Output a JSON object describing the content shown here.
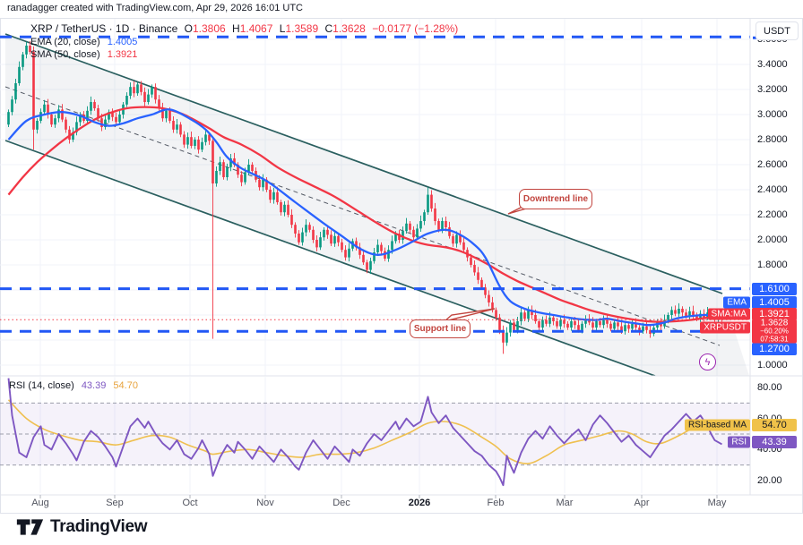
{
  "page": {
    "attribution": "ranadagger created with TradingView.com, Apr 29, 2026 16:01 UTC"
  },
  "header": {
    "symbol_title": "XRP / TetherUS · 1D · Binance",
    "o_label": "O",
    "o_value": "1.3806",
    "h_label": "H",
    "h_value": "1.4067",
    "l_label": "L",
    "l_value": "1.3589",
    "c_label": "C",
    "c_value": "1.3628",
    "change": "−0.0177 (−1.28%)",
    "ema_label": "EMA (20, close)",
    "ema_value": "1.4005",
    "sma_label": "SMA (50, close)",
    "sma_value": "1.3921"
  },
  "rsi_legend": {
    "label": "RSI (14, close)",
    "rsi_value": "43.39",
    "ma_value": "54.70"
  },
  "axis": {
    "currency_button": "USDT",
    "price_ticks": [
      [
        "3.6000",
        44
      ],
      [
        "3.4000",
        72
      ],
      [
        "3.2000",
        100
      ],
      [
        "3.0000",
        128
      ],
      [
        "2.8000",
        156
      ],
      [
        "2.6000",
        184
      ],
      [
        "2.4000",
        212
      ],
      [
        "2.2000",
        240
      ],
      [
        "2.0000",
        268
      ],
      [
        "1.8000",
        296
      ],
      [
        "1.0000",
        408
      ]
    ],
    "rsi_ticks": [
      [
        "80.00",
        433
      ],
      [
        "60.00",
        468
      ],
      [
        "40.00",
        502
      ],
      [
        "20.00",
        537
      ]
    ],
    "badges": {
      "resistance": "1.6100",
      "ema_chip": "EMA",
      "ema_value": "1.4005",
      "sma_chip": "SMA:MA",
      "sma_value": "1.3921",
      "last_chip": "XRPUSDT",
      "last_price": "1.3628",
      "last_change_pct": "−60.20%",
      "last_countdown": "07:58:31",
      "support": "1.2700",
      "rsi_ma_chip": "RSI-based MA",
      "rsi_ma_value": "54.70",
      "rsi_chip": "RSI",
      "rsi_value": "43.39"
    }
  },
  "time_axis": {
    "labels": [
      [
        "Aug",
        45
      ],
      [
        "Sep",
        128
      ],
      [
        "Oct",
        212
      ],
      [
        "Nov",
        296
      ],
      [
        "Dec",
        381
      ],
      [
        "2026",
        468
      ],
      [
        "Feb",
        553
      ],
      [
        "Mar",
        630
      ],
      [
        "Apr",
        716
      ],
      [
        "May",
        800
      ]
    ]
  },
  "annotations": {
    "downtrend": "Downtrend line",
    "support": "Support line",
    "lightning_icon": "ϟ"
  },
  "footer": {
    "logo_text": "TradingView"
  },
  "colors": {
    "up": "#089981",
    "down": "#f23645",
    "ema": "#2962ff",
    "sma": "#f23645",
    "channel": "#2a5f5f",
    "channel_fill": "rgba(131,136,153,0.10)",
    "mid_dash": "#555b66",
    "level_blue": "#2157f5",
    "price_line": "#f23645",
    "rsi": "#7e57c2",
    "rsi_ma": "#efc050",
    "rsi_band_fill": "rgba(126,87,194,0.08)",
    "rsi_band_border": "#9a9daa",
    "grid": "#f0f3fa",
    "frame": "#e0e3eb"
  },
  "chart_data": {
    "type": "candlestick",
    "title": "XRP / TetherUS · 1D · Binance",
    "x_axis_months": [
      "Aug",
      "Sep",
      "Oct",
      "Nov",
      "Dec",
      "2026",
      "Feb",
      "Mar",
      "Apr",
      "May"
    ],
    "price_axis_range": [
      1.0,
      3.7
    ],
    "rsi_axis_range": [
      15,
      85
    ],
    "legend": [
      "EMA (20, close)",
      "SMA (50, close)",
      "RSI (14, close)"
    ],
    "last": {
      "open": 1.3806,
      "high": 1.4067,
      "low": 1.3589,
      "close": 1.3628,
      "change": -0.0177,
      "change_pct": -1.28
    },
    "levels": {
      "upper_resistance": 3.62,
      "resistance": 1.61,
      "support": 1.27,
      "current_price": 1.3628
    },
    "first_open": 2.92,
    "closes": [
      3.02,
      3.12,
      3.25,
      3.38,
      3.48,
      3.55,
      3.5,
      2.88,
      2.95,
      3.02,
      3.08,
      3.0,
      2.92,
      2.97,
      3.04,
      2.96,
      2.88,
      2.8,
      2.86,
      2.94,
      3.0,
      2.95,
      3.03,
      3.1,
      3.05,
      2.97,
      2.9,
      2.96,
      3.02,
      2.98,
      2.94,
      3.0,
      3.08,
      3.15,
      3.22,
      3.17,
      3.24,
      3.18,
      3.1,
      3.16,
      3.22,
      3.12,
      3.05,
      2.97,
      3.03,
      2.95,
      2.88,
      2.92,
      2.84,
      2.76,
      2.82,
      2.75,
      2.8,
      2.72,
      2.78,
      2.84,
      2.79,
      2.45,
      2.55,
      2.62,
      2.5,
      2.58,
      2.65,
      2.6,
      2.52,
      2.46,
      2.54,
      2.6,
      2.55,
      2.48,
      2.42,
      2.48,
      2.4,
      2.32,
      2.38,
      2.3,
      2.22,
      2.28,
      2.2,
      2.12,
      2.05,
      1.98,
      2.06,
      2.12,
      2.08,
      2.0,
      1.94,
      2.02,
      2.08,
      2.04,
      1.97,
      2.03,
      1.98,
      1.92,
      1.86,
      1.93,
      1.99,
      1.94,
      1.88,
      1.82,
      1.76,
      1.83,
      1.9,
      1.96,
      1.91,
      1.85,
      1.92,
      1.99,
      2.05,
      2.0,
      2.07,
      2.13,
      2.08,
      2.02,
      2.09,
      2.15,
      2.22,
      2.36,
      2.25,
      2.15,
      2.08,
      2.15,
      2.1,
      2.03,
      1.97,
      2.04,
      1.98,
      1.92,
      1.86,
      1.8,
      1.74,
      1.68,
      1.62,
      1.56,
      1.5,
      1.44,
      1.38,
      1.28,
      1.18,
      1.26,
      1.34,
      1.28,
      1.35,
      1.42,
      1.37,
      1.44,
      1.4,
      1.35,
      1.3,
      1.36,
      1.33,
      1.38,
      1.35,
      1.31,
      1.36,
      1.33,
      1.3,
      1.35,
      1.32,
      1.28,
      1.33,
      1.37,
      1.34,
      1.3,
      1.35,
      1.32,
      1.36,
      1.33,
      1.29,
      1.34,
      1.31,
      1.27,
      1.32,
      1.29,
      1.33,
      1.3,
      1.27,
      1.31,
      1.28,
      1.25,
      1.3,
      1.34,
      1.31,
      1.36,
      1.4,
      1.44,
      1.41,
      1.45,
      1.42,
      1.39,
      1.43,
      1.4,
      1.37,
      1.41,
      1.38,
      1.42,
      1.39,
      1.36,
      1.4,
      1.3628
    ],
    "wick_overrides": {
      "5": {
        "h": 3.58
      },
      "7": {
        "l": 2.72
      },
      "57": {
        "l": 1.21
      },
      "117": {
        "h": 2.42
      },
      "138": {
        "l": 1.09
      }
    },
    "ema20": [
      [
        0,
        2.8
      ],
      [
        5,
        2.95
      ],
      [
        10,
        3.0
      ],
      [
        15,
        3.02
      ],
      [
        20,
        2.99
      ],
      [
        24,
        2.94
      ],
      [
        28,
        2.91
      ],
      [
        32,
        2.93
      ],
      [
        36,
        2.97
      ],
      [
        40,
        3.0
      ],
      [
        45,
        3.04
      ],
      [
        51,
        2.96
      ],
      [
        55,
        2.88
      ],
      [
        58,
        2.78
      ],
      [
        61,
        2.66
      ],
      [
        65,
        2.57
      ],
      [
        72,
        2.47
      ],
      [
        80,
        2.3
      ],
      [
        88,
        2.13
      ],
      [
        93,
        2.03
      ],
      [
        98,
        1.93
      ],
      [
        103,
        1.88
      ],
      [
        108,
        1.92
      ],
      [
        113,
        1.99
      ],
      [
        117,
        2.05
      ],
      [
        122,
        2.08
      ],
      [
        126,
        2.04
      ],
      [
        130,
        1.96
      ],
      [
        133,
        1.86
      ],
      [
        137,
        1.63
      ],
      [
        140,
        1.51
      ],
      [
        144,
        1.45
      ],
      [
        148,
        1.42
      ],
      [
        152,
        1.4
      ],
      [
        156,
        1.38
      ],
      [
        160,
        1.365
      ],
      [
        164,
        1.36
      ],
      [
        167,
        1.37
      ],
      [
        171,
        1.35
      ],
      [
        175,
        1.333
      ],
      [
        179,
        1.32
      ],
      [
        183,
        1.34
      ],
      [
        186,
        1.37
      ],
      [
        190,
        1.39
      ],
      [
        194,
        1.4
      ],
      [
        199,
        1.4005
      ]
    ],
    "sma50": [
      [
        0,
        2.36
      ],
      [
        4,
        2.5
      ],
      [
        8,
        2.62
      ],
      [
        12,
        2.72
      ],
      [
        16,
        2.81
      ],
      [
        20,
        2.89
      ],
      [
        24,
        2.96
      ],
      [
        28,
        3.01
      ],
      [
        33,
        3.05
      ],
      [
        38,
        3.06
      ],
      [
        43,
        3.05
      ],
      [
        48,
        3.01
      ],
      [
        51,
        2.97
      ],
      [
        56,
        2.89
      ],
      [
        60,
        2.82
      ],
      [
        65,
        2.76
      ],
      [
        70,
        2.68
      ],
      [
        75,
        2.58
      ],
      [
        80,
        2.5
      ],
      [
        85,
        2.43
      ],
      [
        90,
        2.36
      ],
      [
        93,
        2.31
      ],
      [
        98,
        2.22
      ],
      [
        103,
        2.13
      ],
      [
        108,
        2.05
      ],
      [
        113,
        1.99
      ],
      [
        117,
        1.96
      ],
      [
        122,
        1.94
      ],
      [
        126,
        1.91
      ],
      [
        130,
        1.86
      ],
      [
        134,
        1.8
      ],
      [
        138,
        1.73
      ],
      [
        142,
        1.67
      ],
      [
        146,
        1.62
      ],
      [
        150,
        1.57
      ],
      [
        154,
        1.52
      ],
      [
        158,
        1.48
      ],
      [
        162,
        1.44
      ],
      [
        166,
        1.41
      ],
      [
        170,
        1.385
      ],
      [
        174,
        1.365
      ],
      [
        178,
        1.35
      ],
      [
        182,
        1.345
      ],
      [
        186,
        1.35
      ],
      [
        190,
        1.36
      ],
      [
        194,
        1.375
      ],
      [
        199,
        1.3921
      ]
    ],
    "rsi": [
      [
        0,
        86
      ],
      [
        1,
        62
      ],
      [
        3,
        38
      ],
      [
        5,
        35
      ],
      [
        7,
        48
      ],
      [
        9,
        55
      ],
      [
        10,
        43
      ],
      [
        12,
        40
      ],
      [
        14,
        50
      ],
      [
        16,
        44
      ],
      [
        18,
        37
      ],
      [
        19,
        33
      ],
      [
        21,
        45
      ],
      [
        23,
        52
      ],
      [
        25,
        48
      ],
      [
        27,
        42
      ],
      [
        29,
        35
      ],
      [
        30,
        29
      ],
      [
        32,
        42
      ],
      [
        34,
        55
      ],
      [
        36,
        60
      ],
      [
        38,
        54
      ],
      [
        39,
        58
      ],
      [
        41,
        50
      ],
      [
        43,
        44
      ],
      [
        45,
        40
      ],
      [
        47,
        46
      ],
      [
        49,
        37
      ],
      [
        51,
        34
      ],
      [
        53,
        41
      ],
      [
        54,
        46
      ],
      [
        56,
        37
      ],
      [
        57,
        23
      ],
      [
        59,
        35
      ],
      [
        61,
        43
      ],
      [
        63,
        38
      ],
      [
        64,
        45
      ],
      [
        66,
        40
      ],
      [
        68,
        34
      ],
      [
        70,
        42
      ],
      [
        72,
        37
      ],
      [
        74,
        32
      ],
      [
        76,
        40
      ],
      [
        78,
        35
      ],
      [
        80,
        29
      ],
      [
        81,
        27
      ],
      [
        83,
        38
      ],
      [
        85,
        46
      ],
      [
        87,
        40
      ],
      [
        89,
        34
      ],
      [
        91,
        42
      ],
      [
        93,
        37
      ],
      [
        95,
        32
      ],
      [
        96,
        40
      ],
      [
        98,
        36
      ],
      [
        100,
        44
      ],
      [
        102,
        50
      ],
      [
        104,
        46
      ],
      [
        106,
        52
      ],
      [
        108,
        58
      ],
      [
        109,
        53
      ],
      [
        111,
        60
      ],
      [
        113,
        55
      ],
      [
        115,
        58
      ],
      [
        117,
        74
      ],
      [
        118,
        64
      ],
      [
        120,
        57
      ],
      [
        122,
        62
      ],
      [
        124,
        54
      ],
      [
        126,
        49
      ],
      [
        128,
        44
      ],
      [
        130,
        39
      ],
      [
        132,
        36
      ],
      [
        134,
        30
      ],
      [
        136,
        26
      ],
      [
        137,
        22
      ],
      [
        138,
        17
      ],
      [
        139,
        36
      ],
      [
        140,
        30
      ],
      [
        141,
        25
      ],
      [
        143,
        38
      ],
      [
        145,
        47
      ],
      [
        147,
        52
      ],
      [
        149,
        47
      ],
      [
        151,
        55
      ],
      [
        153,
        49
      ],
      [
        155,
        44
      ],
      [
        157,
        49
      ],
      [
        159,
        53
      ],
      [
        161,
        46
      ],
      [
        163,
        56
      ],
      [
        165,
        62
      ],
      [
        167,
        57
      ],
      [
        169,
        51
      ],
      [
        171,
        45
      ],
      [
        173,
        49
      ],
      [
        175,
        43
      ],
      [
        177,
        39
      ],
      [
        179,
        35
      ],
      [
        181,
        42
      ],
      [
        183,
        49
      ],
      [
        185,
        53
      ],
      [
        187,
        58
      ],
      [
        189,
        63
      ],
      [
        191,
        58
      ],
      [
        193,
        62
      ],
      [
        195,
        55
      ],
      [
        196,
        50
      ],
      [
        197,
        46
      ],
      [
        199,
        43.39
      ]
    ],
    "rsi_ma": [
      [
        0,
        72
      ],
      [
        5,
        60
      ],
      [
        10,
        53
      ],
      [
        15,
        49
      ],
      [
        20,
        46
      ],
      [
        25,
        45
      ],
      [
        30,
        43
      ],
      [
        35,
        46
      ],
      [
        40,
        49
      ],
      [
        45,
        48
      ],
      [
        50,
        43
      ],
      [
        55,
        39
      ],
      [
        57,
        37
      ],
      [
        62,
        39
      ],
      [
        67,
        40
      ],
      [
        72,
        38
      ],
      [
        77,
        36
      ],
      [
        82,
        35
      ],
      [
        87,
        37
      ],
      [
        92,
        37
      ],
      [
        97,
        38
      ],
      [
        102,
        41
      ],
      [
        107,
        46
      ],
      [
        112,
        51
      ],
      [
        117,
        57
      ],
      [
        122,
        58
      ],
      [
        127,
        55
      ],
      [
        132,
        48
      ],
      [
        136,
        42
      ],
      [
        140,
        34
      ],
      [
        145,
        31
      ],
      [
        150,
        36
      ],
      [
        155,
        43
      ],
      [
        160,
        46
      ],
      [
        165,
        49
      ],
      [
        170,
        52
      ],
      [
        174,
        50
      ],
      [
        178,
        45
      ],
      [
        182,
        44
      ],
      [
        187,
        49
      ],
      [
        192,
        55
      ],
      [
        196,
        57
      ],
      [
        199,
        54.7
      ]
    ],
    "rsi_band": {
      "upper": 70,
      "middle": 50,
      "lower": 30
    },
    "channel": {
      "upper": [
        [
          6,
          38
        ],
        [
          806,
          328
        ]
      ],
      "lower": [
        [
          6,
          157
        ],
        [
          731,
          420
        ]
      ],
      "mid_dashed": [
        [
          6,
          97
        ],
        [
          803,
          386
        ]
      ]
    },
    "flash_crash_wick": {
      "index": 57,
      "low": 1.21
    }
  }
}
